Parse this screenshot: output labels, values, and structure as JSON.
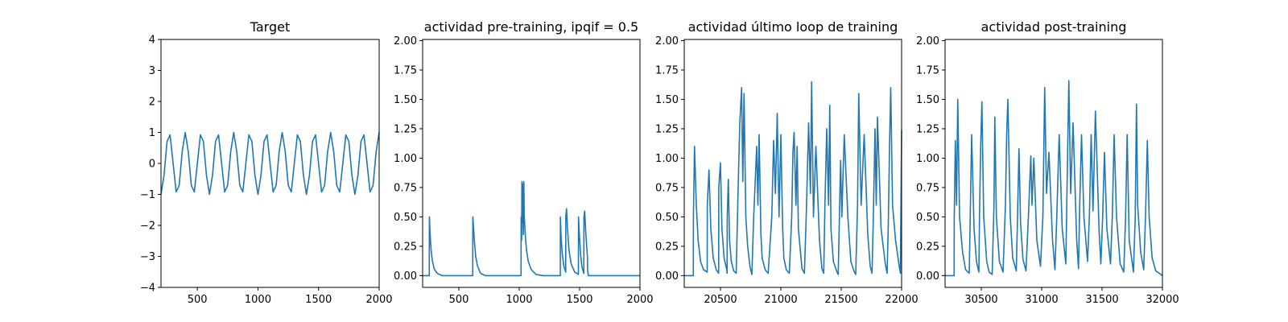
{
  "chart_data": [
    {
      "type": "line",
      "title": "Target",
      "xlabel": "",
      "ylabel": "",
      "xlim": [
        200,
        2000
      ],
      "ylim": [
        -4,
        4
      ],
      "xticks": [
        500,
        1000,
        1500,
        2000
      ],
      "xtick_labels": [
        "500",
        "1000",
        "1500",
        "2000"
      ],
      "yticks": [
        -4,
        -3,
        -2,
        -1,
        0,
        1,
        2,
        3,
        4
      ],
      "ytick_labels": [
        "−4",
        "−3",
        "−2",
        "−1",
        "0",
        "1",
        "2",
        "3",
        "4"
      ],
      "grid": false,
      "color": "#1f77b4",
      "series": [
        {
          "x": [
            200,
            225,
            250,
            275,
            300,
            325,
            350,
            375,
            400,
            425,
            450,
            475,
            500,
            525,
            550,
            575,
            600,
            625,
            650,
            675,
            700,
            725,
            750,
            775,
            800,
            825,
            850,
            875,
            900,
            925,
            950,
            975,
            1000,
            1025,
            1050,
            1075,
            1100,
            1125,
            1150,
            1175,
            1200,
            1225,
            1250,
            1275,
            1300,
            1325,
            1350,
            1375,
            1400,
            1425,
            1450,
            1475,
            1500,
            1525,
            1550,
            1575,
            1600,
            1625,
            1650,
            1675,
            1700,
            1725,
            1750,
            1775,
            1800,
            1825,
            1850,
            1875,
            1900,
            1925,
            1950,
            1975,
            2000
          ],
          "y": [
            -1.0,
            -0.38,
            0.71,
            0.92,
            -0.0,
            -0.92,
            -0.71,
            0.38,
            1.0,
            0.38,
            -0.71,
            -0.92,
            0.0,
            0.92,
            0.71,
            -0.38,
            -1.0,
            -0.38,
            0.71,
            0.92,
            -0.0,
            -0.92,
            -0.71,
            0.38,
            1.0,
            0.38,
            -0.71,
            -0.92,
            0.0,
            0.92,
            0.71,
            -0.38,
            -1.0,
            -0.38,
            0.71,
            0.92,
            -0.0,
            -0.92,
            -0.71,
            0.38,
            1.0,
            0.38,
            -0.71,
            -0.92,
            0.0,
            0.92,
            0.71,
            -0.38,
            -1.0,
            -0.38,
            0.71,
            0.92,
            -0.0,
            -0.92,
            -0.71,
            0.38,
            1.0,
            0.38,
            -0.71,
            -0.92,
            0.0,
            0.92,
            0.71,
            -0.38,
            -1.0,
            -0.38,
            0.71,
            0.92,
            -0.0,
            -0.92,
            -0.71,
            0.38,
            1.0
          ]
        }
      ]
    },
    {
      "type": "line",
      "title": "actividad pre-training, ipqif = 0.5",
      "xlabel": "",
      "ylabel": "",
      "xlim": [
        200,
        2000
      ],
      "ylim": [
        -0.1,
        2.01
      ],
      "xticks": [
        500,
        1000,
        1500,
        2000
      ],
      "xtick_labels": [
        "500",
        "1000",
        "1500",
        "2000"
      ],
      "yticks": [
        0,
        0.25,
        0.5,
        0.75,
        1.0,
        1.25,
        1.5,
        1.75,
        2.0
      ],
      "ytick_labels": [
        "0.00",
        "0.25",
        "0.50",
        "0.75",
        "1.00",
        "1.25",
        "1.50",
        "1.75",
        "2.00"
      ],
      "grid": false,
      "color": "#1f77b4",
      "series": [
        {
          "x": [
            200,
            255,
            256,
            262,
            270,
            280,
            295,
            320,
            360,
            420,
            500,
            600,
            615,
            616,
            622,
            630,
            640,
            655,
            680,
            720,
            800,
            900,
            1000,
            1015,
            1016,
            1020,
            1022,
            1026,
            1030,
            1034,
            1038,
            1042,
            1050,
            1060,
            1075,
            1100,
            1140,
            1200,
            1270,
            1340,
            1341,
            1346,
            1355,
            1370,
            1385,
            1386,
            1392,
            1400,
            1412,
            1430,
            1460,
            1490,
            1491,
            1498,
            1508,
            1520,
            1535,
            1536,
            1542,
            1552,
            1565,
            1566,
            1572,
            1582,
            1600,
            1630,
            1680,
            1750,
            1850,
            2000
          ],
          "y": [
            0.0,
            0.0,
            0.5,
            0.35,
            0.22,
            0.13,
            0.06,
            0.02,
            0.0,
            0.0,
            0.0,
            0.0,
            0.0,
            0.5,
            0.4,
            0.28,
            0.16,
            0.08,
            0.02,
            0.0,
            0.0,
            0.0,
            0.0,
            0.0,
            0.5,
            0.3,
            0.8,
            0.45,
            0.78,
            0.35,
            0.8,
            0.5,
            0.35,
            0.22,
            0.12,
            0.05,
            0.01,
            0.0,
            0.0,
            0.0,
            0.5,
            0.35,
            0.2,
            0.08,
            0.03,
            0.5,
            0.57,
            0.4,
            0.22,
            0.1,
            0.03,
            0.01,
            0.5,
            0.35,
            0.18,
            0.07,
            0.02,
            0.5,
            0.55,
            0.35,
            0.16,
            0.06,
            0.0,
            0.0,
            0.0,
            0.0,
            0.0,
            0.0,
            0.0,
            0.0
          ]
        }
      ]
    },
    {
      "type": "line",
      "title": "actividad último loop de training",
      "xlabel": "",
      "ylabel": "",
      "xlim": [
        20200,
        22000
      ],
      "ylim": [
        -0.1,
        2.01
      ],
      "xticks": [
        20500,
        21000,
        21500,
        22000
      ],
      "xtick_labels": [
        "20500",
        "21000",
        "21500",
        "22000"
      ],
      "yticks": [
        0,
        0.25,
        0.5,
        0.75,
        1.0,
        1.25,
        1.5,
        1.75,
        2.0
      ],
      "ytick_labels": [
        "0.00",
        "0.25",
        "0.50",
        "0.75",
        "1.00",
        "1.25",
        "1.50",
        "1.75",
        "2.00"
      ],
      "grid": false,
      "color": "#1f77b4",
      "series": [
        {
          "x": [
            20200,
            20275,
            20276,
            20285,
            20300,
            20315,
            20335,
            20360,
            20390,
            20391,
            20405,
            20420,
            20440,
            20465,
            20485,
            20486,
            20500,
            20512,
            20530,
            20550,
            20555,
            20556,
            20565,
            20575,
            20590,
            20610,
            20630,
            20650,
            20660,
            20675,
            20685,
            20695,
            20710,
            20725,
            20745,
            20760,
            20775,
            20800,
            20810,
            20820,
            20835,
            20845,
            20870,
            20895,
            20925,
            20940,
            20955,
            20970,
            20985,
            21000,
            21015,
            21025,
            21045,
            21070,
            21090,
            21100,
            21110,
            21125,
            21135,
            21145,
            21175,
            21195,
            21210,
            21230,
            21245,
            21255,
            21270,
            21290,
            21320,
            21340,
            21355,
            21365,
            21380,
            21395,
            21405,
            21415,
            21435,
            21465,
            21475,
            21485,
            21495,
            21505,
            21525,
            21555,
            21580,
            21605,
            21620,
            21635,
            21645,
            21665,
            21690,
            21720,
            21740,
            21755,
            21765,
            21780,
            21790,
            21800,
            21830,
            21865,
            21880,
            21890,
            21900,
            21910,
            21925,
            21950,
            21980,
            21990,
            22000
          ],
          "y": [
            0.0,
            0.0,
            0.5,
            1.1,
            0.6,
            0.3,
            0.12,
            0.05,
            0.03,
            0.6,
            0.9,
            0.4,
            0.15,
            0.05,
            0.02,
            0.75,
            0.96,
            0.4,
            0.15,
            0.06,
            0.02,
            0.5,
            0.82,
            0.3,
            0.12,
            0.04,
            0.02,
            0.9,
            1.3,
            1.6,
            0.8,
            1.55,
            0.5,
            0.25,
            0.07,
            0.01,
            0.5,
            1.1,
            0.6,
            1.2,
            0.35,
            0.15,
            0.05,
            0.02,
            0.5,
            1.15,
            0.7,
            1.38,
            0.5,
            1.2,
            0.4,
            0.15,
            0.05,
            0.02,
            0.5,
            1.05,
            1.22,
            0.6,
            1.1,
            0.4,
            0.06,
            0.02,
            0.5,
            1.3,
            0.7,
            1.65,
            0.5,
            1.1,
            0.3,
            0.06,
            0.02,
            0.6,
            1.25,
            0.6,
            1.45,
            0.4,
            0.12,
            0.03,
            0.01,
            0.5,
            0.98,
            0.5,
            1.2,
            0.5,
            0.12,
            0.04,
            0.01,
            0.6,
            1.55,
            0.6,
            1.2,
            0.35,
            0.08,
            0.02,
            0.45,
            1.25,
            0.6,
            1.35,
            0.4,
            0.1,
            0.02,
            0.45,
            1.1,
            1.6,
            0.6,
            0.3,
            0.08,
            0.02,
            1.24
          ]
        }
      ]
    },
    {
      "type": "line",
      "title": "actividad post-training",
      "xlabel": "",
      "ylabel": "",
      "xlim": [
        30200,
        32000
      ],
      "ylim": [
        -0.1,
        2.01
      ],
      "xticks": [
        30500,
        31000,
        31500,
        32000
      ],
      "xtick_labels": [
        "30500",
        "31000",
        "31500",
        "32000"
      ],
      "yticks": [
        0,
        0.25,
        0.5,
        0.75,
        1.0,
        1.25,
        1.5,
        1.75,
        2.0
      ],
      "ytick_labels": [
        "0.00",
        "0.25",
        "0.50",
        "0.75",
        "1.00",
        "1.25",
        "1.50",
        "1.75",
        "2.00"
      ],
      "grid": false,
      "color": "#1f77b4",
      "series": [
        {
          "x": [
            30200,
            30275,
            30276,
            30285,
            30295,
            30305,
            30320,
            30345,
            30370,
            30400,
            30410,
            30420,
            30440,
            30460,
            30480,
            30485,
            30495,
            30505,
            30520,
            30545,
            30565,
            30590,
            30605,
            30612,
            30625,
            30650,
            30680,
            30700,
            30710,
            30720,
            30740,
            30760,
            30790,
            30800,
            30812,
            30825,
            30845,
            30870,
            30890,
            30910,
            30920,
            30935,
            30960,
            30990,
            31010,
            31025,
            31040,
            31060,
            31090,
            31110,
            31125,
            31145,
            31170,
            31200,
            31215,
            31225,
            31240,
            31260,
            31290,
            31305,
            31315,
            31330,
            31350,
            31380,
            31395,
            31410,
            31425,
            31445,
            31475,
            31490,
            31505,
            31520,
            31540,
            31570,
            31585,
            31600,
            31620,
            31650,
            31680,
            31695,
            31708,
            31725,
            31760,
            31775,
            31785,
            31795,
            31820,
            31845,
            31860,
            31875,
            31890,
            31915,
            31945,
            31975,
            32000
          ],
          "y": [
            0.0,
            0.0,
            0.5,
            1.15,
            0.6,
            1.5,
            0.5,
            0.2,
            0.05,
            0.02,
            0.6,
            1.2,
            0.4,
            0.12,
            0.03,
            0.5,
            1.1,
            1.48,
            0.5,
            0.12,
            0.03,
            0.01,
            0.6,
            1.35,
            0.5,
            0.12,
            0.03,
            0.6,
            1.2,
            1.5,
            0.5,
            0.15,
            0.04,
            0.5,
            1.08,
            0.45,
            0.14,
            0.04,
            0.5,
            1.02,
            0.6,
            1.0,
            0.3,
            0.08,
            0.5,
            1.6,
            0.7,
            1.05,
            0.3,
            0.05,
            0.5,
            1.2,
            0.4,
            0.1,
            1.05,
            1.66,
            0.7,
            1.3,
            0.3,
            0.06,
            0.6,
            1.2,
            0.5,
            0.12,
            0.5,
            1.2,
            0.55,
            1.4,
            0.4,
            0.1,
            0.5,
            1.05,
            0.4,
            0.1,
            0.5,
            1.2,
            0.5,
            0.1,
            0.03,
            0.5,
            1.2,
            0.3,
            0.03,
            0.5,
            1.46,
            0.6,
            0.2,
            0.05,
            0.5,
            1.15,
            0.5,
            0.15,
            0.04,
            0.02,
            0.0
          ]
        }
      ]
    }
  ]
}
